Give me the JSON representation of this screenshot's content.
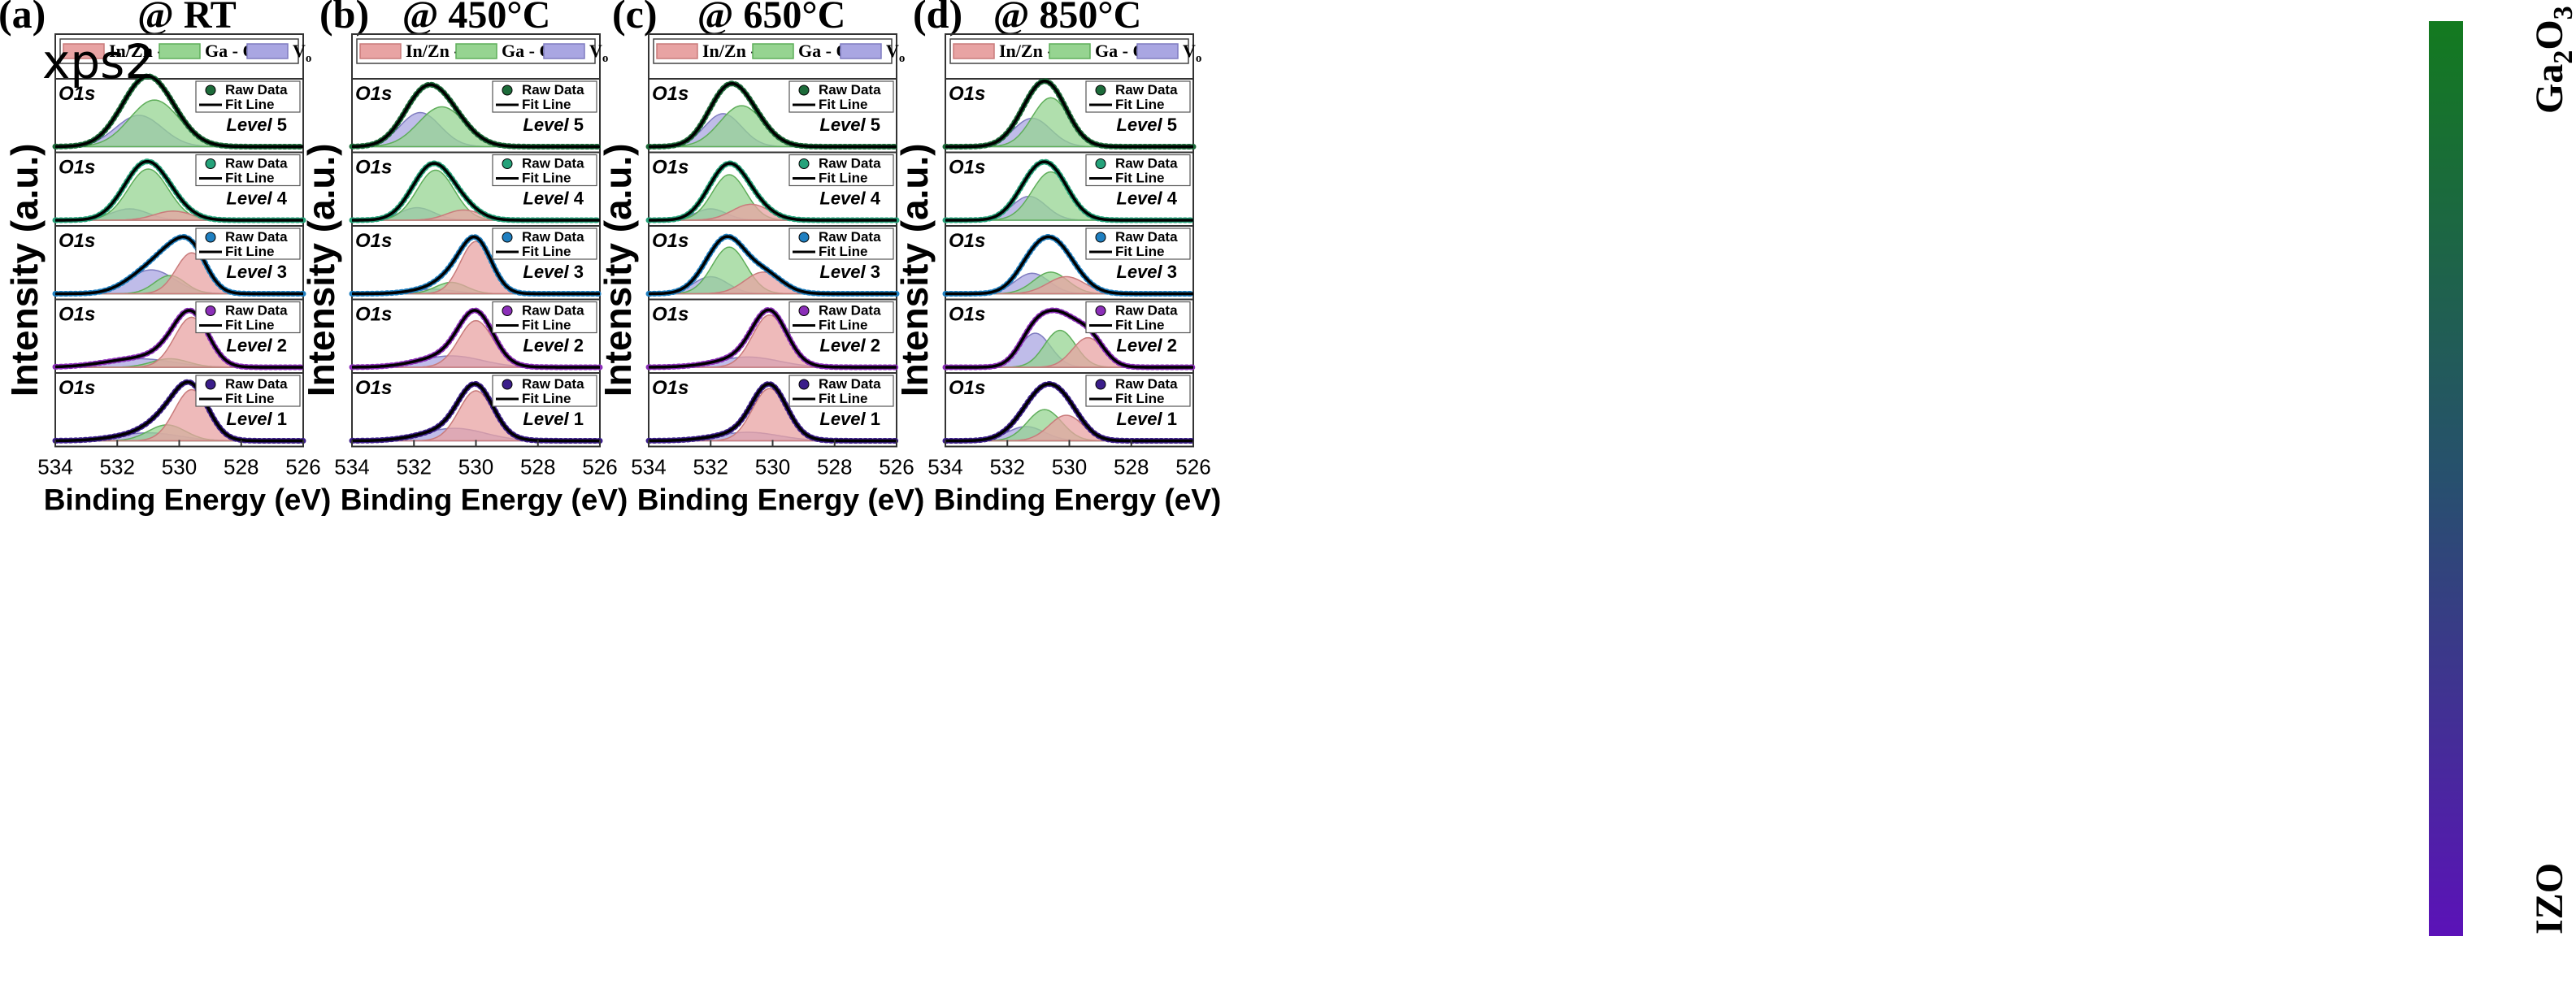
{
  "corner_label": "xps2",
  "colorbar": {
    "top_label": "Ga",
    "top_sub2": "2",
    "top_mid": "O",
    "top_sub3": "3",
    "bottom_label": "IZO",
    "top_color": "#137a1f",
    "bottom_color": "#5b12b8"
  },
  "legend_main": {
    "entries": [
      "In/Zn - O",
      "Ga - O",
      "V"
    ],
    "vo_subscript": "o",
    "colors": [
      "#e8a3a3",
      "#96d491",
      "#a9a6e2"
    ]
  },
  "legend_small": {
    "raw": "Raw Data",
    "fit": "Fit Line"
  },
  "common": {
    "xlabel": "Binding Energy (eV)",
    "ylabel": "Intensity (a.u.)",
    "peak_label": "O1s",
    "level_word": "Level",
    "xticks": [
      "534",
      "532",
      "530",
      "528",
      "526"
    ]
  },
  "level_colors": {
    "5": "#1d6b3a",
    "4": "#25a27a",
    "3": "#1f7fc0",
    "2": "#8b2fb8",
    "1": "#3b1e8a"
  },
  "chart_data": [
    {
      "type": "line",
      "panel": "(a)",
      "title": "@ RT",
      "xlim": [
        534,
        526
      ],
      "levels": [
        {
          "level": "5",
          "total": 1.0,
          "components": [
            {
              "kind": "Vo",
              "center": 531.3,
              "amp": 0.55,
              "width": 0.75
            },
            {
              "kind": "GaO",
              "center": 530.8,
              "amp": 0.82,
              "width": 0.8
            }
          ]
        },
        {
          "level": "4",
          "total": 1.0,
          "components": [
            {
              "kind": "Vo",
              "center": 531.6,
              "amp": 0.2,
              "width": 0.6
            },
            {
              "kind": "GaO",
              "center": 531.0,
              "amp": 0.9,
              "width": 0.65
            },
            {
              "kind": "InZnO",
              "center": 530.2,
              "amp": 0.16,
              "width": 0.6
            }
          ]
        },
        {
          "level": "3",
          "total": 1.0,
          "components": [
            {
              "kind": "Vo",
              "center": 530.9,
              "amp": 0.42,
              "width": 0.75
            },
            {
              "kind": "GaO",
              "center": 530.3,
              "amp": 0.32,
              "width": 0.5
            },
            {
              "kind": "InZnO",
              "center": 529.6,
              "amp": 0.72,
              "width": 0.5
            }
          ]
        },
        {
          "level": "2",
          "total": 1.0,
          "components": [
            {
              "kind": "Vo",
              "center": 531.3,
              "amp": 0.15,
              "width": 1.1
            },
            {
              "kind": "GaO",
              "center": 530.3,
              "amp": 0.15,
              "width": 0.6
            },
            {
              "kind": "InZnO",
              "center": 529.6,
              "amp": 0.88,
              "width": 0.55
            }
          ]
        },
        {
          "level": "1",
          "total": 1.0,
          "components": [
            {
              "kind": "Vo",
              "center": 531.0,
              "amp": 0.14,
              "width": 1.0
            },
            {
              "kind": "GaO",
              "center": 530.4,
              "amp": 0.28,
              "width": 0.6
            },
            {
              "kind": "InZnO",
              "center": 529.6,
              "amp": 0.9,
              "width": 0.55
            }
          ]
        }
      ]
    },
    {
      "type": "line",
      "panel": "(b)",
      "title": "@ 450°C",
      "xlim": [
        534,
        526
      ],
      "levels": [
        {
          "level": "5",
          "total": 1.0,
          "components": [
            {
              "kind": "Vo",
              "center": 531.8,
              "amp": 0.6,
              "width": 0.65
            },
            {
              "kind": "GaO",
              "center": 531.1,
              "amp": 0.7,
              "width": 0.75
            }
          ]
        },
        {
          "level": "4",
          "total": 1.0,
          "components": [
            {
              "kind": "Vo",
              "center": 531.9,
              "amp": 0.22,
              "width": 0.55
            },
            {
              "kind": "GaO",
              "center": 531.3,
              "amp": 0.88,
              "width": 0.6
            },
            {
              "kind": "InZnO",
              "center": 530.4,
              "amp": 0.18,
              "width": 0.55
            }
          ]
        },
        {
          "level": "3",
          "total": 1.0,
          "components": [
            {
              "kind": "Vo",
              "center": 531.4,
              "amp": 0.08,
              "width": 0.7
            },
            {
              "kind": "GaO",
              "center": 530.8,
              "amp": 0.2,
              "width": 0.5
            },
            {
              "kind": "InZnO",
              "center": 530.0,
              "amp": 0.92,
              "width": 0.5
            }
          ]
        },
        {
          "level": "2",
          "total": 1.0,
          "components": [
            {
              "kind": "Vo",
              "center": 530.8,
              "amp": 0.2,
              "width": 1.0
            },
            {
              "kind": "InZnO",
              "center": 530.0,
              "amp": 0.82,
              "width": 0.55
            }
          ]
        },
        {
          "level": "1",
          "total": 1.0,
          "components": [
            {
              "kind": "Vo",
              "center": 530.7,
              "amp": 0.22,
              "width": 1.0
            },
            {
              "kind": "InZnO",
              "center": 530.0,
              "amp": 0.88,
              "width": 0.55
            }
          ]
        }
      ]
    },
    {
      "type": "line",
      "panel": "(c)",
      "title": "@ 650°C",
      "xlim": [
        534,
        526
      ],
      "levels": [
        {
          "level": "5",
          "total": 1.0,
          "components": [
            {
              "kind": "Vo",
              "center": 531.6,
              "amp": 0.58,
              "width": 0.6
            },
            {
              "kind": "GaO",
              "center": 531.0,
              "amp": 0.72,
              "width": 0.7
            }
          ]
        },
        {
          "level": "4",
          "total": 1.0,
          "components": [
            {
              "kind": "Vo",
              "center": 532.0,
              "amp": 0.2,
              "width": 0.5
            },
            {
              "kind": "GaO",
              "center": 531.4,
              "amp": 0.8,
              "width": 0.55
            },
            {
              "kind": "InZnO",
              "center": 530.7,
              "amp": 0.28,
              "width": 0.6
            }
          ]
        },
        {
          "level": "3",
          "total": 1.0,
          "components": [
            {
              "kind": "Vo",
              "center": 532.0,
              "amp": 0.3,
              "width": 0.55
            },
            {
              "kind": "GaO",
              "center": 531.4,
              "amp": 0.82,
              "width": 0.55
            },
            {
              "kind": "InZnO",
              "center": 530.3,
              "amp": 0.38,
              "width": 0.6
            }
          ]
        },
        {
          "level": "2",
          "total": 1.0,
          "components": [
            {
              "kind": "Vo",
              "center": 530.8,
              "amp": 0.18,
              "width": 1.0
            },
            {
              "kind": "InZnO",
              "center": 530.1,
              "amp": 0.92,
              "width": 0.55
            }
          ]
        },
        {
          "level": "1",
          "total": 1.0,
          "components": [
            {
              "kind": "Vo",
              "center": 530.8,
              "amp": 0.15,
              "width": 1.0
            },
            {
              "kind": "InZnO",
              "center": 530.1,
              "amp": 0.92,
              "width": 0.55
            }
          ]
        }
      ]
    },
    {
      "type": "line",
      "panel": "(d)",
      "title": "@ 850°C",
      "xlim": [
        534,
        526
      ],
      "levels": [
        {
          "level": "5",
          "total": 1.0,
          "components": [
            {
              "kind": "Vo",
              "center": 531.2,
              "amp": 0.5,
              "width": 0.6
            },
            {
              "kind": "GaO",
              "center": 530.6,
              "amp": 0.86,
              "width": 0.6
            }
          ]
        },
        {
          "level": "4",
          "total": 1.0,
          "components": [
            {
              "kind": "Vo",
              "center": 531.3,
              "amp": 0.42,
              "width": 0.55
            },
            {
              "kind": "GaO",
              "center": 530.6,
              "amp": 0.85,
              "width": 0.6
            }
          ]
        },
        {
          "level": "3",
          "total": 1.0,
          "components": [
            {
              "kind": "Vo",
              "center": 531.2,
              "amp": 0.36,
              "width": 0.55
            },
            {
              "kind": "GaO",
              "center": 530.6,
              "amp": 0.38,
              "width": 0.55
            },
            {
              "kind": "InZnO",
              "center": 530.1,
              "amp": 0.3,
              "width": 0.6
            }
          ]
        },
        {
          "level": "2",
          "total": 1.0,
          "components": [
            {
              "kind": "Vo",
              "center": 531.1,
              "amp": 0.6,
              "width": 0.5
            },
            {
              "kind": "GaO",
              "center": 530.3,
              "amp": 0.65,
              "width": 0.5
            },
            {
              "kind": "InZnO",
              "center": 529.4,
              "amp": 0.52,
              "width": 0.5
            }
          ]
        },
        {
          "level": "1",
          "total": 1.0,
          "components": [
            {
              "kind": "Vo",
              "center": 531.4,
              "amp": 0.25,
              "width": 0.6
            },
            {
              "kind": "GaO",
              "center": 530.8,
              "amp": 0.55,
              "width": 0.55
            },
            {
              "kind": "InZnO",
              "center": 530.1,
              "amp": 0.45,
              "width": 0.55
            }
          ]
        }
      ]
    }
  ]
}
